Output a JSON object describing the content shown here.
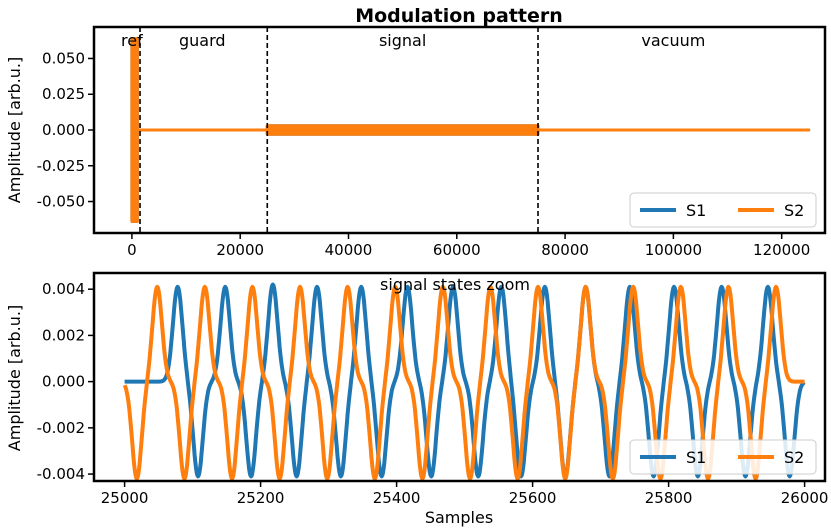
{
  "chart_data": [
    {
      "type": "line",
      "title": "Modulation pattern",
      "xlabel": "",
      "ylabel": "Amplitude [arb.u.]",
      "xlim": [
        -7000,
        128000
      ],
      "ylim": [
        -0.072,
        0.072
      ],
      "xticks": [
        0,
        20000,
        40000,
        60000,
        80000,
        100000,
        120000
      ],
      "xtick_labels": [
        "0",
        "20000",
        "40000",
        "60000",
        "80000",
        "100000",
        "120000"
      ],
      "yticks": [
        0.05,
        0.025,
        0.0,
        -0.025,
        -0.05
      ],
      "ytick_labels": [
        "0.050",
        "0.025",
        "0.000",
        "-0.025",
        "-0.050"
      ],
      "regions": [
        {
          "label": "ref",
          "x_center": 0
        },
        {
          "label": "guard",
          "x_center": 13000
        },
        {
          "label": "signal",
          "x_center": 50000
        },
        {
          "label": "vacuum",
          "x_center": 100000
        }
      ],
      "boundaries": [
        1500,
        25000,
        75000
      ],
      "series": [
        {
          "name": "S1",
          "color": "#1f77b4",
          "segments": [
            {
              "x_start": 0,
              "x_end": 1000,
              "amplitude": 0.065
            },
            {
              "x_start": 1000,
              "x_end": 25000,
              "amplitude": 0.0
            },
            {
              "x_start": 25000,
              "x_end": 75000,
              "amplitude": 0.004
            },
            {
              "x_start": 75000,
              "x_end": 125000,
              "amplitude": 0.0
            }
          ]
        },
        {
          "name": "S2",
          "color": "#ff7f0e",
          "segments": [
            {
              "x_start": 0,
              "x_end": 1000,
              "amplitude": 0.065
            },
            {
              "x_start": 1000,
              "x_end": 25000,
              "amplitude": 0.0
            },
            {
              "x_start": 25000,
              "x_end": 75000,
              "amplitude": 0.004
            },
            {
              "x_start": 75000,
              "x_end": 125000,
              "amplitude": 0.0
            }
          ]
        }
      ],
      "legend": {
        "position": "lower-right",
        "entries": [
          "S1",
          "S2"
        ]
      }
    },
    {
      "type": "line",
      "title": "signal states zoom",
      "xlabel": "Samples",
      "ylabel": "Amplitude [arb.u.]",
      "xlim": [
        24955,
        26030
      ],
      "ylim": [
        -0.0043,
        0.0047
      ],
      "xticks": [
        25000,
        25200,
        25400,
        25600,
        25800,
        26000
      ],
      "xtick_labels": [
        "25000",
        "25200",
        "25400",
        "25600",
        "25800",
        "26000"
      ],
      "yticks": [
        0.004,
        0.002,
        0.0,
        -0.002,
        -0.004
      ],
      "ytick_labels": [
        "0.004",
        "0.002",
        "0.000",
        "-0.002",
        "-0.004"
      ],
      "pulse_width": 7,
      "series": [
        {
          "name": "S1",
          "color": "#1f77b4",
          "pulses": [
            {
              "x": 25078,
              "a": 0.0041
            },
            {
              "x": 25108,
              "a": -0.0041
            },
            {
              "x": 25148,
              "a": 0.0041
            },
            {
              "x": 25186,
              "a": -0.0041
            },
            {
              "x": 25218,
              "a": 0.0042
            },
            {
              "x": 25253,
              "a": -0.0041
            },
            {
              "x": 25283,
              "a": 0.0041
            },
            {
              "x": 25318,
              "a": -0.0041
            },
            {
              "x": 25348,
              "a": 0.0041
            },
            {
              "x": 25378,
              "a": -0.0041
            },
            {
              "x": 25416,
              "a": 0.0041
            },
            {
              "x": 25451,
              "a": -0.0041
            },
            {
              "x": 25483,
              "a": 0.0041
            },
            {
              "x": 25520,
              "a": -0.0041
            },
            {
              "x": 25554,
              "a": 0.0041
            },
            {
              "x": 25583,
              "a": -0.0041
            },
            {
              "x": 25618,
              "a": 0.0041
            },
            {
              "x": 25648,
              "a": -0.0041
            },
            {
              "x": 25678,
              "a": 0.0041
            },
            {
              "x": 25713,
              "a": -0.0041
            },
            {
              "x": 25743,
              "a": 0.0041
            },
            {
              "x": 25778,
              "a": -0.0041
            },
            {
              "x": 25808,
              "a": 0.0041
            },
            {
              "x": 25843,
              "a": -0.0041
            },
            {
              "x": 25878,
              "a": 0.0041
            },
            {
              "x": 25913,
              "a": -0.0041
            },
            {
              "x": 25946,
              "a": 0.0041
            },
            {
              "x": 25978,
              "a": -0.0041
            }
          ]
        },
        {
          "name": "S2",
          "color": "#ff7f0e",
          "pulses": [
            {
              "x": 25018,
              "a": -0.0042
            },
            {
              "x": 25048,
              "a": 0.0041
            },
            {
              "x": 25088,
              "a": -0.0042
            },
            {
              "x": 25118,
              "a": 0.0041
            },
            {
              "x": 25158,
              "a": -0.0042
            },
            {
              "x": 25188,
              "a": 0.0041
            },
            {
              "x": 25228,
              "a": -0.0042
            },
            {
              "x": 25258,
              "a": 0.0041
            },
            {
              "x": 25298,
              "a": -0.0042
            },
            {
              "x": 25328,
              "a": 0.0041
            },
            {
              "x": 25368,
              "a": -0.0042
            },
            {
              "x": 25398,
              "a": 0.0041
            },
            {
              "x": 25438,
              "a": -0.0042
            },
            {
              "x": 25468,
              "a": 0.0041
            },
            {
              "x": 25508,
              "a": -0.0042
            },
            {
              "x": 25538,
              "a": 0.0041
            },
            {
              "x": 25578,
              "a": -0.0042
            },
            {
              "x": 25608,
              "a": 0.0041
            },
            {
              "x": 25648,
              "a": -0.0042
            },
            {
              "x": 25678,
              "a": 0.0041
            },
            {
              "x": 25718,
              "a": -0.0042
            },
            {
              "x": 25748,
              "a": 0.0041
            },
            {
              "x": 25788,
              "a": -0.0042
            },
            {
              "x": 25818,
              "a": 0.0041
            },
            {
              "x": 25858,
              "a": -0.0042
            },
            {
              "x": 25888,
              "a": 0.0041
            },
            {
              "x": 25928,
              "a": -0.0042
            },
            {
              "x": 25958,
              "a": 0.0041
            }
          ]
        }
      ],
      "legend": {
        "position": "lower-right",
        "entries": [
          "S1",
          "S2"
        ]
      }
    }
  ]
}
